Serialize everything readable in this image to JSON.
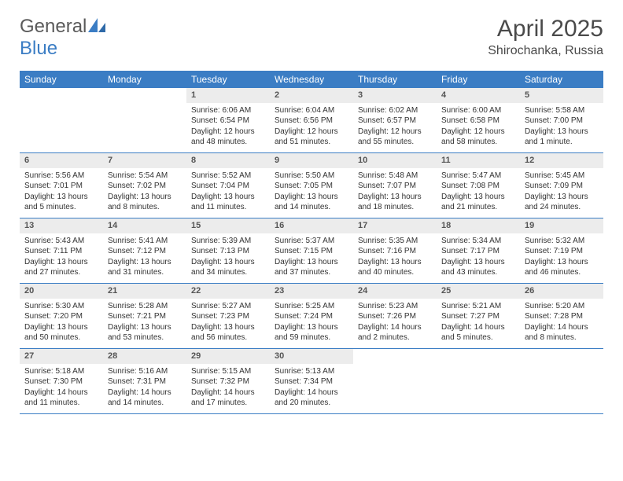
{
  "logo": {
    "part1": "General",
    "part2": "Blue"
  },
  "title": "April 2025",
  "location": "Shirochanka, Russia",
  "colors": {
    "header_bg": "#3b7dc4",
    "header_text": "#ffffff",
    "daynum_bg": "#ececec",
    "daynum_text": "#555555",
    "body_text": "#333333",
    "rule": "#3b7dc4",
    "page_bg": "#ffffff"
  },
  "typography": {
    "title_fontsize": 30,
    "location_fontsize": 16,
    "dow_fontsize": 12,
    "daynum_fontsize": 11,
    "body_fontsize": 10
  },
  "daysOfWeek": [
    "Sunday",
    "Monday",
    "Tuesday",
    "Wednesday",
    "Thursday",
    "Friday",
    "Saturday"
  ],
  "weeks": [
    [
      null,
      null,
      {
        "n": 1,
        "sr": "6:06 AM",
        "ss": "6:54 PM",
        "dl": "12 hours and 48 minutes."
      },
      {
        "n": 2,
        "sr": "6:04 AM",
        "ss": "6:56 PM",
        "dl": "12 hours and 51 minutes."
      },
      {
        "n": 3,
        "sr": "6:02 AM",
        "ss": "6:57 PM",
        "dl": "12 hours and 55 minutes."
      },
      {
        "n": 4,
        "sr": "6:00 AM",
        "ss": "6:58 PM",
        "dl": "12 hours and 58 minutes."
      },
      {
        "n": 5,
        "sr": "5:58 AM",
        "ss": "7:00 PM",
        "dl": "13 hours and 1 minute."
      }
    ],
    [
      {
        "n": 6,
        "sr": "5:56 AM",
        "ss": "7:01 PM",
        "dl": "13 hours and 5 minutes."
      },
      {
        "n": 7,
        "sr": "5:54 AM",
        "ss": "7:02 PM",
        "dl": "13 hours and 8 minutes."
      },
      {
        "n": 8,
        "sr": "5:52 AM",
        "ss": "7:04 PM",
        "dl": "13 hours and 11 minutes."
      },
      {
        "n": 9,
        "sr": "5:50 AM",
        "ss": "7:05 PM",
        "dl": "13 hours and 14 minutes."
      },
      {
        "n": 10,
        "sr": "5:48 AM",
        "ss": "7:07 PM",
        "dl": "13 hours and 18 minutes."
      },
      {
        "n": 11,
        "sr": "5:47 AM",
        "ss": "7:08 PM",
        "dl": "13 hours and 21 minutes."
      },
      {
        "n": 12,
        "sr": "5:45 AM",
        "ss": "7:09 PM",
        "dl": "13 hours and 24 minutes."
      }
    ],
    [
      {
        "n": 13,
        "sr": "5:43 AM",
        "ss": "7:11 PM",
        "dl": "13 hours and 27 minutes."
      },
      {
        "n": 14,
        "sr": "5:41 AM",
        "ss": "7:12 PM",
        "dl": "13 hours and 31 minutes."
      },
      {
        "n": 15,
        "sr": "5:39 AM",
        "ss": "7:13 PM",
        "dl": "13 hours and 34 minutes."
      },
      {
        "n": 16,
        "sr": "5:37 AM",
        "ss": "7:15 PM",
        "dl": "13 hours and 37 minutes."
      },
      {
        "n": 17,
        "sr": "5:35 AM",
        "ss": "7:16 PM",
        "dl": "13 hours and 40 minutes."
      },
      {
        "n": 18,
        "sr": "5:34 AM",
        "ss": "7:17 PM",
        "dl": "13 hours and 43 minutes."
      },
      {
        "n": 19,
        "sr": "5:32 AM",
        "ss": "7:19 PM",
        "dl": "13 hours and 46 minutes."
      }
    ],
    [
      {
        "n": 20,
        "sr": "5:30 AM",
        "ss": "7:20 PM",
        "dl": "13 hours and 50 minutes."
      },
      {
        "n": 21,
        "sr": "5:28 AM",
        "ss": "7:21 PM",
        "dl": "13 hours and 53 minutes."
      },
      {
        "n": 22,
        "sr": "5:27 AM",
        "ss": "7:23 PM",
        "dl": "13 hours and 56 minutes."
      },
      {
        "n": 23,
        "sr": "5:25 AM",
        "ss": "7:24 PM",
        "dl": "13 hours and 59 minutes."
      },
      {
        "n": 24,
        "sr": "5:23 AM",
        "ss": "7:26 PM",
        "dl": "14 hours and 2 minutes."
      },
      {
        "n": 25,
        "sr": "5:21 AM",
        "ss": "7:27 PM",
        "dl": "14 hours and 5 minutes."
      },
      {
        "n": 26,
        "sr": "5:20 AM",
        "ss": "7:28 PM",
        "dl": "14 hours and 8 minutes."
      }
    ],
    [
      {
        "n": 27,
        "sr": "5:18 AM",
        "ss": "7:30 PM",
        "dl": "14 hours and 11 minutes."
      },
      {
        "n": 28,
        "sr": "5:16 AM",
        "ss": "7:31 PM",
        "dl": "14 hours and 14 minutes."
      },
      {
        "n": 29,
        "sr": "5:15 AM",
        "ss": "7:32 PM",
        "dl": "14 hours and 17 minutes."
      },
      {
        "n": 30,
        "sr": "5:13 AM",
        "ss": "7:34 PM",
        "dl": "14 hours and 20 minutes."
      },
      null,
      null,
      null
    ]
  ],
  "labels": {
    "sunrise": "Sunrise:",
    "sunset": "Sunset:",
    "daylight": "Daylight:"
  }
}
